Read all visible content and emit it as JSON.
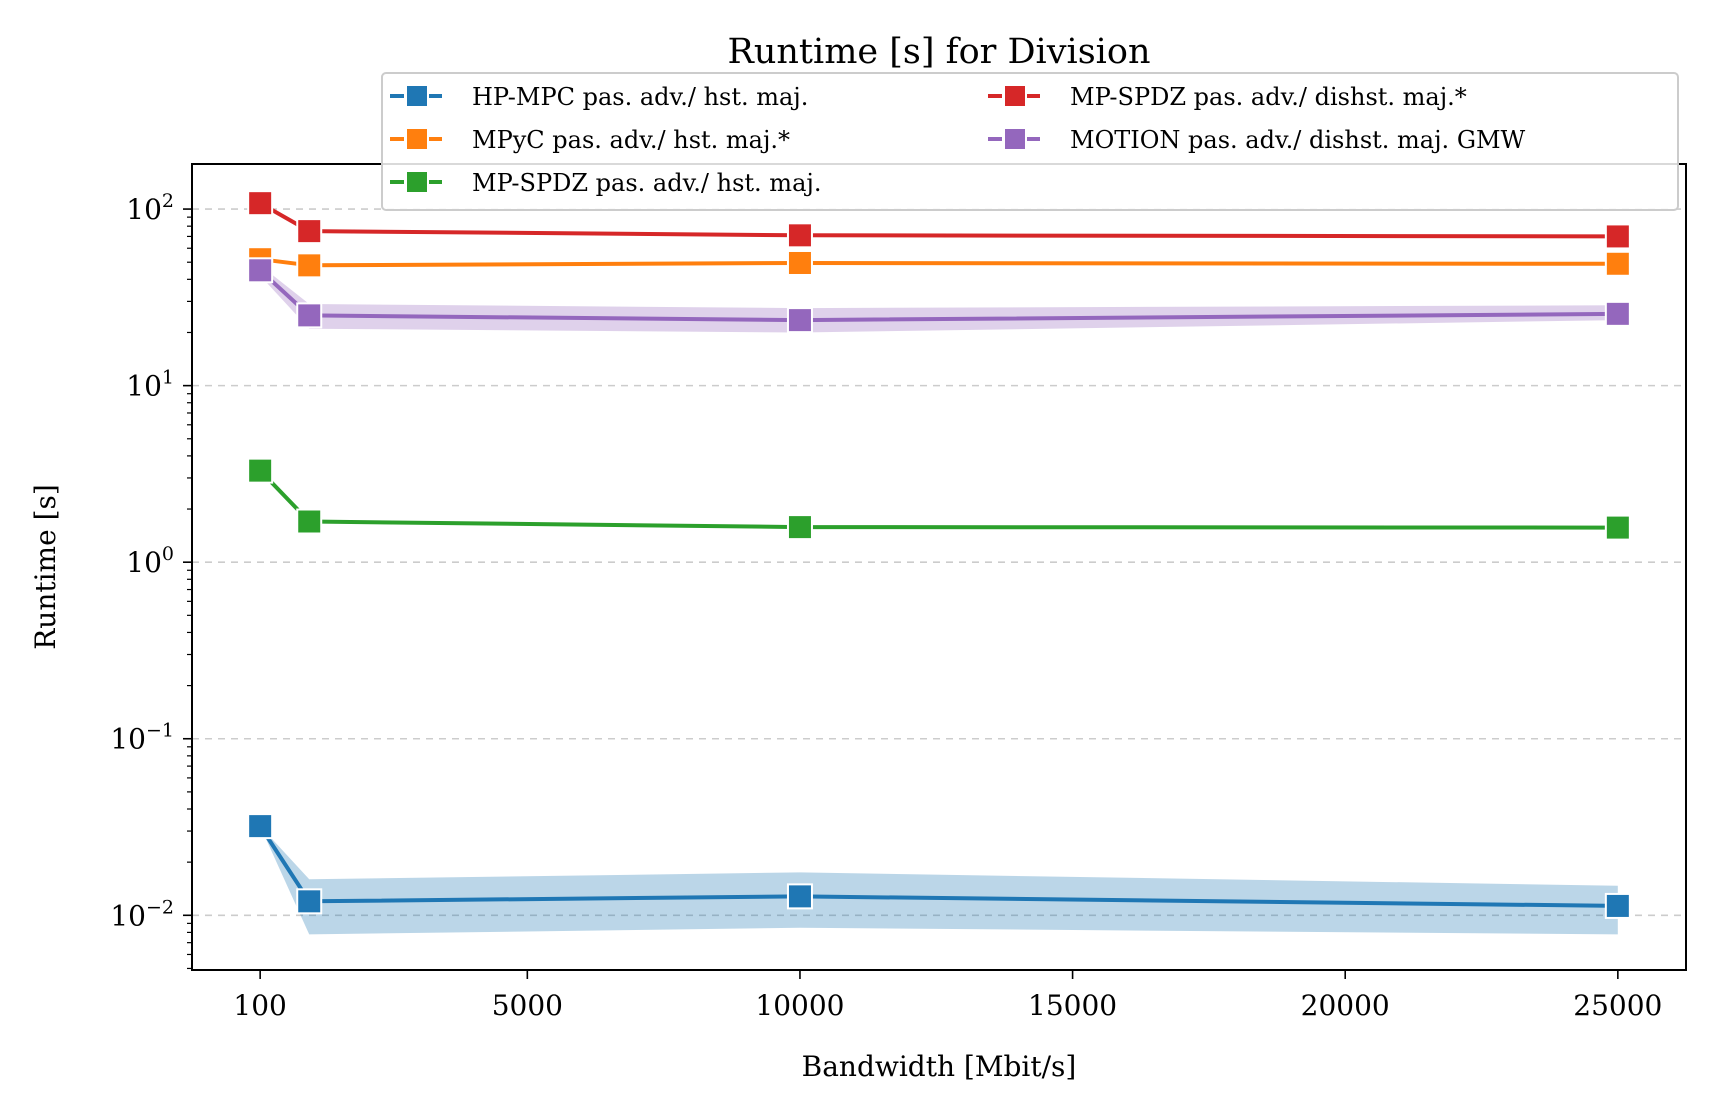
{
  "chart_data": {
    "type": "line",
    "title": "Runtime [s] for Division",
    "xlabel": "Bandwidth [Mbit/s]",
    "ylabel": "Runtime [s]",
    "x_ticks": [
      100,
      5000,
      10000,
      15000,
      20000,
      25000
    ],
    "x_tick_labels": [
      "100",
      "5000",
      "10000",
      "15000",
      "20000",
      "25000"
    ],
    "xlim": [
      -1150,
      26250
    ],
    "y_scale": "log",
    "ylim": [
      0.0049,
      180
    ],
    "y_ticks": [
      0.01,
      0.1,
      1,
      10,
      100
    ],
    "y_tick_labels": [
      {
        "base": "10",
        "exp": "−2"
      },
      {
        "base": "10",
        "exp": "−1"
      },
      {
        "base": "10",
        "exp": "0"
      },
      {
        "base": "10",
        "exp": "1"
      },
      {
        "base": "10",
        "exp": "2"
      }
    ],
    "grid": "y-dashed",
    "legend_position": "top-right",
    "x": [
      100,
      1000,
      10000,
      25000
    ],
    "series": [
      {
        "name": "HP-MPC pas. adv./ hst. maj.",
        "color": "#1f77b4",
        "values": [
          0.032,
          0.012,
          0.0128,
          0.0113
        ],
        "band_low": [
          0.032,
          0.0078,
          0.0085,
          0.0078
        ],
        "band_high": [
          0.032,
          0.016,
          0.0175,
          0.0147
        ]
      },
      {
        "name": "MPyC pas. adv./ hst. maj.*",
        "color": "#ff7f0e",
        "values": [
          52,
          48,
          49.5,
          49
        ]
      },
      {
        "name": "MP-SPDZ pas. adv./ hst. maj.",
        "color": "#2ca02c",
        "values": [
          3.3,
          1.7,
          1.58,
          1.57
        ]
      },
      {
        "name": "MP-SPDZ pas. adv./ dishst. maj.*",
        "color": "#d62728",
        "values": [
          108,
          75,
          71,
          70
        ]
      },
      {
        "name": "MOTION pas. adv./ dishst. maj. GMW",
        "color": "#9467bd",
        "values": [
          45,
          25,
          23.5,
          25.5
        ],
        "band_low": [
          42,
          21,
          20,
          23.5
        ],
        "band_high": [
          48,
          29,
          27.5,
          28.5
        ]
      }
    ]
  }
}
